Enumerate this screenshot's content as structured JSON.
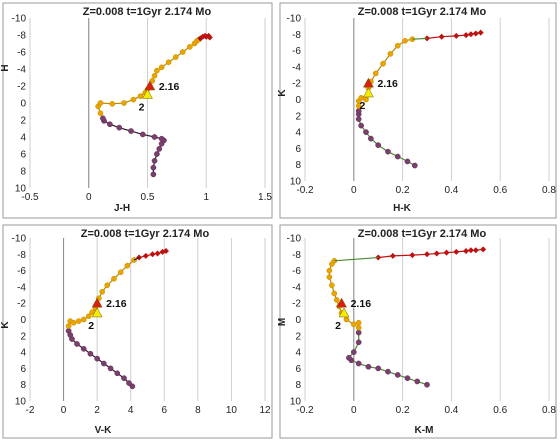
{
  "chart_data": [
    {
      "type": "scatter",
      "title": "Z=0.008  t=1Gyr  2.174 Mo",
      "xlabel": "J-H",
      "ylabel": "H",
      "xlim": [
        -0.5,
        1.5
      ],
      "ylim": [
        10,
        -10
      ],
      "xticks": [
        -0.5,
        0,
        0.5,
        1,
        1.5
      ],
      "xtick_labels": [
        "-0.5",
        "0",
        "0.5",
        "1",
        "1.5"
      ],
      "yticks": [
        -10,
        -8,
        -6,
        -4,
        -2,
        0,
        2,
        4,
        6,
        8,
        10
      ],
      "ytick_labels": [
        "-10",
        "-8",
        "-6",
        "-4",
        "-2",
        "0",
        "2",
        "4",
        "6",
        "8",
        "10"
      ],
      "grid": "vertical",
      "colors": {
        "lower_ms": "#7a3f6e",
        "upper": "#e8a400",
        "giant": "#c01010",
        "marker_2": "#f2ee00",
        "marker_216": "#d82010",
        "tail_line": "#2a1a2a"
      },
      "series": [
        {
          "role": "lower_ms",
          "x": [
            0.55,
            0.55,
            0.56,
            0.58,
            0.6,
            0.62,
            0.64,
            0.62,
            0.56,
            0.46,
            0.36,
            0.26,
            0.18,
            0.13,
            0.12
          ],
          "y": [
            8.4,
            7.6,
            6.8,
            6.0,
            5.4,
            4.8,
            4.4,
            4.2,
            4.0,
            3.7,
            3.3,
            2.9,
            2.5,
            2.1,
            1.8
          ]
        },
        {
          "role": "upper",
          "x": [
            0.1,
            0.08,
            0.1,
            0.2,
            0.3,
            0.38,
            0.44,
            0.48,
            0.5,
            0.52,
            0.54,
            0.56,
            0.58,
            0.62,
            0.68,
            0.74,
            0.8,
            0.86,
            0.9,
            0.92,
            0.94
          ],
          "y": [
            1.2,
            0.4,
            0.0,
            0.1,
            0.0,
            -0.4,
            -0.8,
            -1.2,
            -1.6,
            -2.0,
            -2.6,
            -3.2,
            -3.8,
            -4.2,
            -4.8,
            -5.4,
            -6.0,
            -6.6,
            -7.0,
            -7.3,
            -7.5
          ]
        },
        {
          "role": "giant",
          "x": [
            0.95,
            0.97,
            0.99,
            1.0,
            1.02,
            1.03
          ],
          "y": [
            -7.6,
            -7.8,
            -7.9,
            -7.8,
            -7.9,
            -7.7
          ]
        }
      ],
      "annotations": [
        {
          "text": "2.16",
          "x": 0.52,
          "y": -2.0,
          "marker": "triangle-red"
        },
        {
          "text": "2",
          "x": 0.5,
          "y": -1.0,
          "marker": "triangle-yellow"
        }
      ]
    },
    {
      "type": "scatter",
      "title": "Z=0.008  t=1Gyr  2.174 Mo",
      "xlabel": "H-K",
      "ylabel": "K",
      "xlim": [
        -0.2,
        0.8
      ],
      "ylim": [
        10,
        -10
      ],
      "xticks": [
        -0.2,
        0,
        0.2,
        0.4,
        0.6,
        0.8
      ],
      "xtick_labels": [
        "-0.2",
        "0",
        "0.2",
        "0.4",
        "0.6",
        "0.8"
      ],
      "yticks": [
        -10,
        -8,
        -6,
        -4,
        -2,
        0,
        2,
        4,
        6,
        8,
        10
      ],
      "ytick_labels": [
        "-10",
        "-8",
        "-6",
        "-4",
        "-2",
        "0",
        "2",
        "4",
        "6",
        "8",
        "10"
      ],
      "grid": "vertical",
      "colors": {
        "lower_ms": "#7a3f6e",
        "upper": "#e8a400",
        "giant": "#c01010",
        "marker_2": "#f2ee00",
        "marker_216": "#d82010",
        "tail_line": "#4a8a30"
      },
      "series": [
        {
          "role": "lower_ms",
          "x": [
            0.25,
            0.22,
            0.18,
            0.14,
            0.1,
            0.07,
            0.05,
            0.03,
            0.02,
            0.02,
            0.02
          ],
          "y": [
            8.1,
            7.6,
            7.0,
            6.4,
            5.6,
            4.8,
            4.0,
            3.2,
            2.4,
            1.8,
            1.4
          ]
        },
        {
          "role": "upper",
          "x": [
            0.02,
            0.02,
            0.03,
            0.05,
            0.06,
            0.06,
            0.07,
            0.09,
            0.12,
            0.15,
            0.18,
            0.21,
            0.24
          ],
          "y": [
            0.8,
            0.2,
            -0.2,
            0.0,
            -0.6,
            -1.4,
            -2.2,
            -3.2,
            -4.4,
            -5.6,
            -6.6,
            -7.2,
            -7.4
          ]
        },
        {
          "role": "giant",
          "x": [
            0.3,
            0.36,
            0.42,
            0.46,
            0.48,
            0.5,
            0.52
          ],
          "y": [
            -7.5,
            -7.7,
            -7.8,
            -7.9,
            -8.0,
            -8.1,
            -8.2
          ]
        }
      ],
      "annotations": [
        {
          "text": "2.16",
          "x": 0.06,
          "y": -2.0,
          "marker": "triangle-red"
        },
        {
          "text": "2",
          "x": 0.06,
          "y": -0.8,
          "marker": "triangle-yellow"
        }
      ]
    },
    {
      "type": "scatter",
      "title": "Z=0.008  t=1Gyr  2.174 Mo",
      "xlabel": "V-K",
      "ylabel": "K",
      "xlim": [
        -2,
        12
      ],
      "ylim": [
        10,
        -10
      ],
      "xticks": [
        -2,
        0,
        2,
        4,
        6,
        8,
        10,
        12
      ],
      "xtick_labels": [
        "-2",
        "0",
        "2",
        "4",
        "6",
        "8",
        "10",
        "12"
      ],
      "yticks": [
        -10,
        -8,
        -6,
        -4,
        -2,
        0,
        2,
        4,
        6,
        8,
        10
      ],
      "ytick_labels": [
        "-10",
        "-8",
        "-6",
        "-4",
        "-2",
        "0",
        "2",
        "4",
        "6",
        "8",
        "10"
      ],
      "grid": "vertical",
      "colors": {
        "lower_ms": "#7a3f6e",
        "upper": "#e8a400",
        "giant": "#c01010",
        "marker_2": "#f2ee00",
        "marker_216": "#d82010",
        "tail_line": "#2a1a2a"
      },
      "series": [
        {
          "role": "lower_ms",
          "x": [
            4.1,
            3.9,
            3.6,
            3.2,
            2.8,
            2.4,
            2.0,
            1.6,
            1.2,
            0.8,
            0.5,
            0.4,
            0.3
          ],
          "y": [
            8.2,
            7.8,
            7.2,
            6.6,
            6.0,
            5.4,
            4.8,
            4.2,
            3.6,
            3.0,
            2.4,
            1.9,
            1.4
          ]
        },
        {
          "role": "upper",
          "x": [
            0.3,
            0.4,
            0.6,
            0.9,
            1.2,
            1.5,
            1.7,
            1.9,
            2.0,
            2.1,
            2.3,
            2.6,
            3.0,
            3.4,
            3.8,
            4.2
          ],
          "y": [
            0.8,
            0.2,
            0.4,
            0.2,
            0.0,
            -0.4,
            -0.9,
            -1.4,
            -2.0,
            -2.6,
            -3.4,
            -4.2,
            -5.0,
            -5.8,
            -6.6,
            -7.3
          ]
        },
        {
          "role": "giant",
          "x": [
            4.5,
            4.9,
            5.3,
            5.6,
            5.9,
            6.1
          ],
          "y": [
            -7.6,
            -7.8,
            -8.0,
            -8.1,
            -8.3,
            -8.4
          ]
        }
      ],
      "annotations": [
        {
          "text": "2.16",
          "x": 2.0,
          "y": -2.0,
          "marker": "triangle-red"
        },
        {
          "text": "2",
          "x": 2.0,
          "y": -0.8,
          "marker": "triangle-yellow"
        }
      ]
    },
    {
      "type": "scatter",
      "title": "Z=0.008  t=1Gyr  2.174 Mo",
      "xlabel": "K-M",
      "ylabel": "M",
      "xlim": [
        -0.2,
        0.8
      ],
      "ylim": [
        10,
        -10
      ],
      "xticks": [
        -0.2,
        0,
        0.2,
        0.4,
        0.6,
        0.8
      ],
      "xtick_labels": [
        "-0.2",
        "0",
        "0.2",
        "0.4",
        "0.6",
        "0.8"
      ],
      "yticks": [
        -10,
        -8,
        -6,
        -4,
        -2,
        0,
        2,
        4,
        6,
        8,
        10
      ],
      "ytick_labels": [
        "-10",
        "-8",
        "-6",
        "-4",
        "-2",
        "0",
        "2",
        "4",
        "6",
        "8",
        "10"
      ],
      "grid": "vertical",
      "colors": {
        "lower_ms": "#7a3f6e",
        "upper": "#e8a400",
        "giant": "#c01010",
        "marker_2": "#f2ee00",
        "marker_216": "#d82010",
        "tail_line": "#4a8a30"
      },
      "series": [
        {
          "role": "lower_ms",
          "x": [
            0.3,
            0.26,
            0.22,
            0.18,
            0.14,
            0.1,
            0.06,
            0.02,
            -0.01,
            -0.02,
            0.0,
            0.02,
            0.02
          ],
          "y": [
            8.0,
            7.6,
            7.2,
            6.8,
            6.4,
            6.0,
            5.8,
            5.4,
            5.0,
            4.7,
            4.0,
            2.8,
            1.6
          ]
        },
        {
          "role": "upper",
          "x": [
            0.02,
            0.02,
            0.0,
            -0.03,
            -0.05,
            -0.06,
            -0.07,
            -0.08,
            -0.09,
            -0.1,
            -0.1,
            -0.09,
            -0.08
          ],
          "y": [
            1.0,
            0.4,
            0.6,
            0.0,
            -0.8,
            -1.6,
            -2.4,
            -3.2,
            -4.2,
            -5.2,
            -6.0,
            -6.8,
            -7.2
          ]
        },
        {
          "role": "giant",
          "x": [
            0.1,
            0.16,
            0.24,
            0.3,
            0.34,
            0.38,
            0.42,
            0.46,
            0.48,
            0.5,
            0.53
          ],
          "y": [
            -7.6,
            -7.8,
            -7.9,
            -8.0,
            -8.1,
            -8.2,
            -8.3,
            -8.4,
            -8.5,
            -8.5,
            -8.6
          ]
        }
      ],
      "annotations": [
        {
          "text": "2.16",
          "x": -0.05,
          "y": -2.0,
          "marker": "triangle-red"
        },
        {
          "text": "2",
          "x": -0.04,
          "y": -0.8,
          "marker": "triangle-yellow"
        }
      ]
    }
  ]
}
